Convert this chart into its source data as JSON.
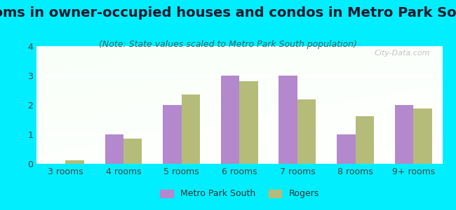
{
  "title": "Rooms in owner-occupied houses and condos in Metro Park South",
  "subtitle": "(Note: State values scaled to Metro Park South population)",
  "categories": [
    "3 rooms",
    "4 rooms",
    "5 rooms",
    "6 rooms",
    "7 rooms",
    "8 rooms",
    "9+ rooms"
  ],
  "metro_values": [
    0.0,
    1.0,
    2.0,
    3.0,
    3.0,
    1.0,
    2.0
  ],
  "rogers_values": [
    0.12,
    0.85,
    2.35,
    2.8,
    2.2,
    1.63,
    1.88
  ],
  "metro_color": "#b388cc",
  "rogers_color": "#b5bc7a",
  "background_outer": "#00eeff",
  "ylim": [
    0,
    4
  ],
  "yticks": [
    0,
    1,
    2,
    3,
    4
  ],
  "bar_width": 0.32,
  "legend_metro": "Metro Park South",
  "legend_rogers": "Rogers",
  "watermark": "City-Data.com",
  "title_fontsize": 14,
  "subtitle_fontsize": 9,
  "tick_fontsize": 9,
  "legend_fontsize": 9
}
